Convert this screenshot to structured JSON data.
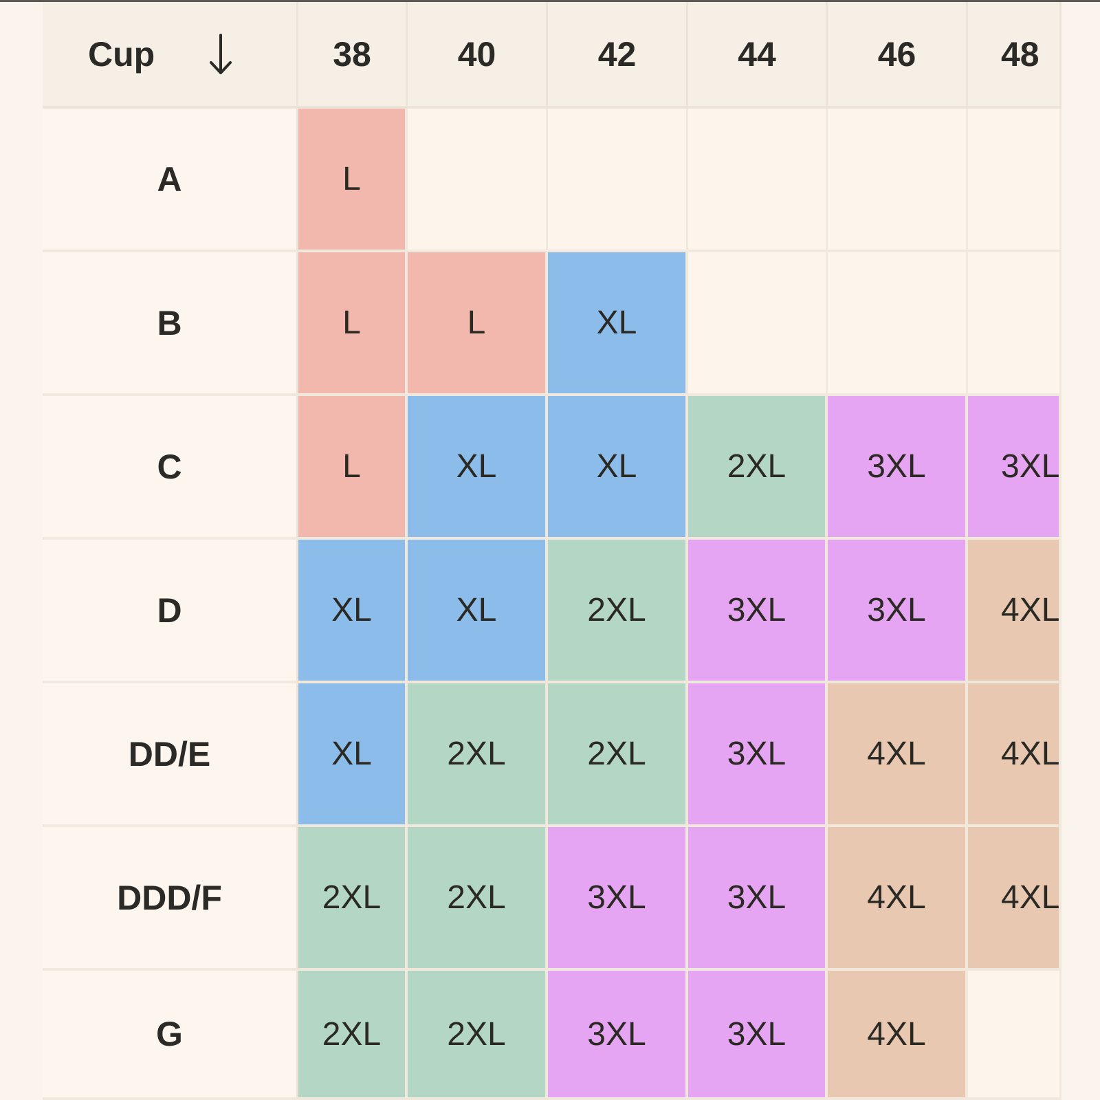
{
  "header": {
    "corner_label": "Cup",
    "sort_icon": "arrow-down-icon",
    "bands": [
      "38",
      "40",
      "42",
      "44",
      "46",
      "48"
    ]
  },
  "rows": [
    {
      "cup": "A",
      "sizes": [
        "L",
        "",
        "",
        "",
        "",
        ""
      ]
    },
    {
      "cup": "B",
      "sizes": [
        "L",
        "L",
        "XL",
        "",
        "",
        ""
      ]
    },
    {
      "cup": "C",
      "sizes": [
        "L",
        "XL",
        "XL",
        "2XL",
        "3XL",
        "3XL"
      ]
    },
    {
      "cup": "D",
      "sizes": [
        "XL",
        "XL",
        "2XL",
        "3XL",
        "3XL",
        "4XL"
      ]
    },
    {
      "cup": "DD/E",
      "sizes": [
        "XL",
        "2XL",
        "2XL",
        "3XL",
        "4XL",
        "4XL"
      ]
    },
    {
      "cup": "DDD/F",
      "sizes": [
        "2XL",
        "2XL",
        "3XL",
        "3XL",
        "4XL",
        "4XL"
      ]
    },
    {
      "cup": "G",
      "sizes": [
        "2XL",
        "2XL",
        "3XL",
        "3XL",
        "4XL",
        ""
      ]
    }
  ],
  "colors": {
    "L": "#f3b8ad",
    "XL": "#8cbcea",
    "2XL": "#b3d6c5",
    "3XL": "#e6a5f2",
    "4XL": "#e8c8b1",
    "empty": "#fdf5eb",
    "header_bg": "#f5efe6",
    "page_bg": "#fbf4ec"
  }
}
